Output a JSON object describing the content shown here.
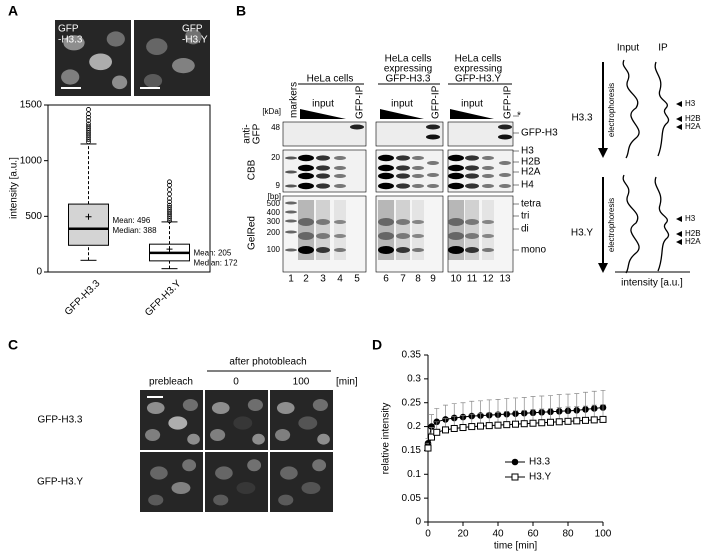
{
  "figure": {
    "panel_labels": [
      "A",
      "B",
      "C",
      "D"
    ],
    "a": {
      "image_labels": [
        [
          "GFP",
          "-H3.3"
        ],
        [
          "GFP",
          "-H3.Y"
        ]
      ]
    },
    "b": {
      "markers": "markers",
      "groups": [
        {
          "title": [
            "HeLa cells"
          ],
          "input": "input",
          "ip": "GFP-IP"
        },
        {
          "title": [
            "HeLa cells",
            "expressing",
            "GFP-H3.3"
          ],
          "input": "input",
          "ip": "GFP-IP"
        },
        {
          "title": [
            "HeLa cells",
            "expressing",
            "GFP-H3.Y"
          ],
          "input": "input",
          "ip": "GFP-IP"
        }
      ],
      "lanes": [
        1,
        2,
        3,
        4,
        5,
        6,
        7,
        8,
        9,
        10,
        11,
        12,
        13
      ],
      "blots": [
        {
          "label": [
            "anti-",
            "GFP"
          ],
          "unit": "[kDa]",
          "ticks": [
            48
          ]
        },
        {
          "label": [
            "CBB"
          ],
          "ticks": [
            20,
            9
          ]
        },
        {
          "label": [
            "GelRed"
          ],
          "unit": "[bp]",
          "ticks": [
            500,
            400,
            300,
            200,
            100
          ]
        }
      ],
      "band_labels": [
        "*",
        "GFP-H3",
        "H3",
        "H2B",
        "H2A",
        "H4",
        "tetra",
        "tri",
        "di",
        "mono"
      ],
      "schematic": {
        "columns": [
          "Input",
          "IP"
        ],
        "rows": [
          {
            "name": "H3.3",
            "arrow_label": "electrophoresis",
            "bands": [
              "H3",
              "H2B",
              "H2A"
            ]
          },
          {
            "name": "H3.Y",
            "arrow_label": "electrophoresis",
            "bands": [
              "H3",
              "H2B",
              "H2A"
            ]
          }
        ],
        "xlabel": "intensity [a.u.]"
      }
    },
    "c": {
      "first_column": "prebleach",
      "group": "after photobleach",
      "timepoints": [
        0,
        100
      ],
      "time_unit": "[min]",
      "rows": [
        "GFP-H3.3",
        "GFP-H3.Y"
      ]
    }
  },
  "chart_data": [
    {
      "type": "box",
      "ylabel": "intensity [a.u.]",
      "categories": [
        "GFP-H3.3",
        "GFP-H3.Y"
      ],
      "colors": [
        "#d4d4d4",
        "#ffffff"
      ],
      "boxes": [
        {
          "whisker_low": 105,
          "q1": 240,
          "median": 388,
          "q3": 610,
          "whisker_high": 1150,
          "mean": 496,
          "outliers": [
            1170,
            1190,
            1210,
            1230,
            1250,
            1270,
            1290,
            1310,
            1330,
            1360,
            1390,
            1420,
            1460
          ],
          "annotation": [
            "Mean: 496",
            "Median: 388"
          ]
        },
        {
          "whisker_low": 30,
          "q1": 100,
          "median": 172,
          "q3": 250,
          "whisker_high": 450,
          "mean": 205,
          "outliers": [
            460,
            480,
            500,
            520,
            540,
            560,
            580,
            600,
            630,
            660,
            700,
            740,
            780,
            810
          ],
          "annotation": [
            "Mean: 205",
            "Median: 172"
          ]
        }
      ],
      "ylim": [
        0,
        1500
      ],
      "yticks": [
        0,
        500,
        1000,
        1500
      ]
    },
    {
      "type": "line",
      "xlabel": "time [min]",
      "ylabel": "relative intensity",
      "x": [
        0,
        2,
        5,
        10,
        15,
        20,
        25,
        30,
        35,
        40,
        45,
        50,
        55,
        60,
        65,
        70,
        75,
        80,
        85,
        90,
        95,
        100
      ],
      "series": [
        {
          "name": "H3.3",
          "color": "#000000",
          "marker": "filled-circle",
          "values": [
            0.165,
            0.2,
            0.21,
            0.215,
            0.218,
            0.22,
            0.222,
            0.223,
            0.224,
            0.225,
            0.226,
            0.227,
            0.228,
            0.229,
            0.23,
            0.231,
            0.232,
            0.233,
            0.234,
            0.236,
            0.238,
            0.24
          ],
          "errors": [
            0.01,
            0.025,
            0.028,
            0.03,
            0.03,
            0.03,
            0.031,
            0.031,
            0.032,
            0.032,
            0.033,
            0.033,
            0.033,
            0.034,
            0.034,
            0.034,
            0.035,
            0.035,
            0.035,
            0.036,
            0.036,
            0.036
          ]
        },
        {
          "name": "H3.Y",
          "color": "#000000",
          "marker": "open-square",
          "values": [
            0.155,
            0.178,
            0.188,
            0.193,
            0.196,
            0.198,
            0.2,
            0.201,
            0.202,
            0.203,
            0.204,
            0.205,
            0.206,
            0.207,
            0.208,
            0.209,
            0.21,
            0.211,
            0.212,
            0.213,
            0.214,
            0.215
          ],
          "errors": [
            0.01,
            0.02,
            0.022,
            0.024,
            0.025,
            0.025,
            0.026,
            0.026,
            0.027,
            0.027,
            0.028,
            0.028,
            0.028,
            0.029,
            0.029,
            0.029,
            0.03,
            0.03,
            0.03,
            0.03,
            0.031,
            0.031
          ]
        }
      ],
      "xlim": [
        0,
        100
      ],
      "ylim": [
        0,
        0.35
      ],
      "xticks": [
        0,
        20,
        40,
        60,
        80,
        100
      ],
      "yticks": [
        0,
        0.05,
        0.1,
        0.15,
        0.2,
        0.25,
        0.3,
        0.35
      ],
      "legend": "lower right"
    }
  ]
}
